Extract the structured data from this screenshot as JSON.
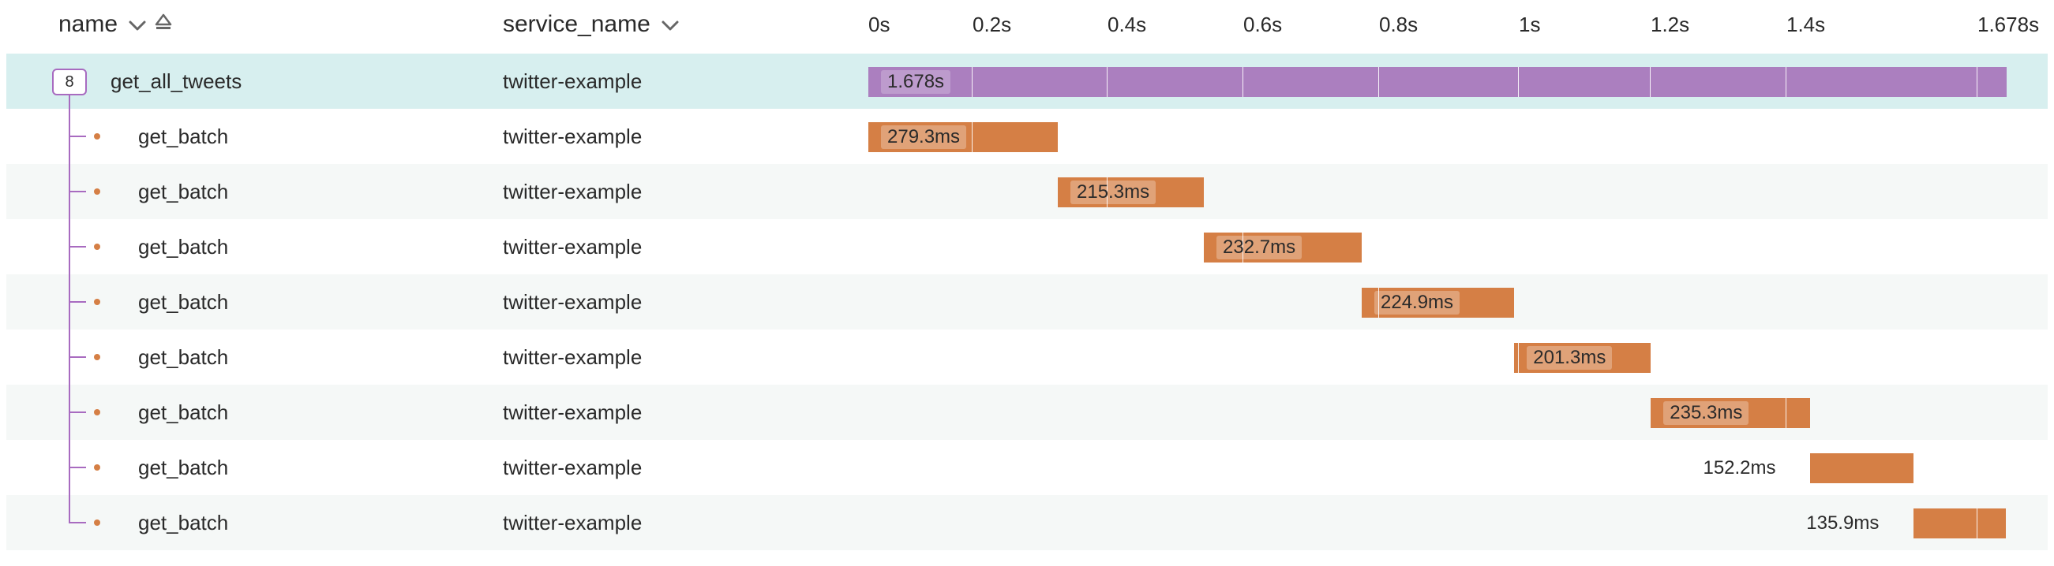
{
  "header": {
    "name_label": "name",
    "service_label": "service_name",
    "name_sort_icon": "chevron-down-icon",
    "name_order_icon": "sort-direction-icon",
    "service_sort_icon": "chevron-down-icon"
  },
  "timeline": {
    "ticks": [
      "0s",
      "0.2s",
      "0.4s",
      "0.6s",
      "0.8s",
      "1s",
      "1.2s",
      "1.4s",
      "1.678s"
    ],
    "total_seconds": 1.678
  },
  "colors": {
    "root_bar": "#ab7fbf",
    "child_bar": "#d57f45",
    "selected_row": "#d7efef",
    "tree_line": "#a86bc0"
  },
  "spans": [
    {
      "name": "get_all_tweets",
      "service": "twitter-example",
      "start": 0.0,
      "duration_label": "1.678s",
      "duration_seconds": 1.678,
      "child_count": "8",
      "root": true
    },
    {
      "name": "get_batch",
      "service": "twitter-example",
      "start": 0.0,
      "duration_label": "279.3ms",
      "duration_seconds": 0.2793
    },
    {
      "name": "get_batch",
      "service": "twitter-example",
      "start": 0.2793,
      "duration_label": "215.3ms",
      "duration_seconds": 0.2153
    },
    {
      "name": "get_batch",
      "service": "twitter-example",
      "start": 0.4946,
      "duration_label": "232.7ms",
      "duration_seconds": 0.2327
    },
    {
      "name": "get_batch",
      "service": "twitter-example",
      "start": 0.7273,
      "duration_label": "224.9ms",
      "duration_seconds": 0.2249
    },
    {
      "name": "get_batch",
      "service": "twitter-example",
      "start": 0.9522,
      "duration_label": "201.3ms",
      "duration_seconds": 0.2013
    },
    {
      "name": "get_batch",
      "service": "twitter-example",
      "start": 1.1535,
      "duration_label": "235.3ms",
      "duration_seconds": 0.2353
    },
    {
      "name": "get_batch",
      "service": "twitter-example",
      "start": 1.3888,
      "duration_label": "152.2ms",
      "duration_seconds": 0.1522
    },
    {
      "name": "get_batch",
      "service": "twitter-example",
      "start": 1.541,
      "duration_label": "135.9ms",
      "duration_seconds": 0.1359
    }
  ]
}
